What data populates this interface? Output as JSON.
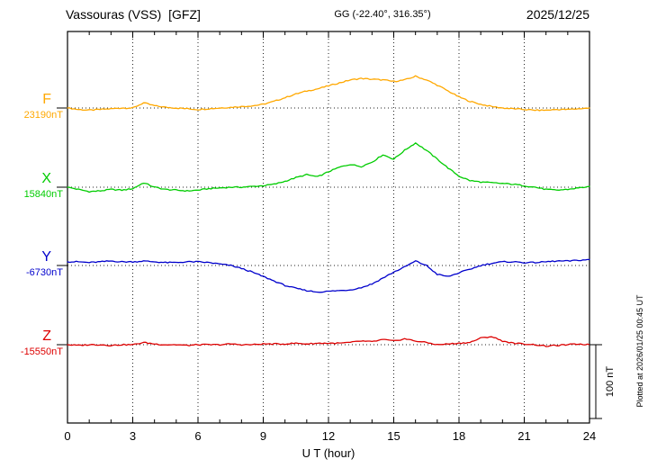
{
  "header": {
    "station": "Vassouras (VSS)  [GFZ]",
    "coords": "GG (-22.40°, 316.35°)",
    "date": "2025/12/25"
  },
  "footer": {
    "plotted_at": "Plotted at 2026/01/25 00:45 UT"
  },
  "chart_data": {
    "type": "line",
    "title": "Vassouras (VSS) [GFZ] magnetogram 2025/12/25",
    "xlabel": "U T (hour)",
    "xlim": [
      0,
      24
    ],
    "x_ticks": [
      0,
      3,
      6,
      9,
      12,
      15,
      18,
      21,
      24
    ],
    "grid": "dotted vertical at 3h intervals; dotted horizontal baseline per channel",
    "legend_position": "left channel labels",
    "values_unit": "nT offset from channel baseline",
    "scale_bar": {
      "label": "100 nT",
      "nT": 100
    },
    "x": [
      0,
      0.5,
      1,
      1.5,
      2,
      2.5,
      3,
      3.5,
      4,
      4.5,
      5,
      5.5,
      6,
      6.5,
      7,
      7.5,
      8,
      8.5,
      9,
      9.5,
      10,
      10.5,
      11,
      11.5,
      12,
      12.5,
      13,
      13.5,
      14,
      14.5,
      15,
      15.5,
      16,
      16.5,
      17,
      17.5,
      18,
      18.5,
      19,
      19.5,
      20,
      20.5,
      21,
      21.5,
      22,
      22.5,
      23,
      23.5,
      24
    ],
    "series": [
      {
        "name": "F",
        "baseline_label": "23190nT",
        "baseline_nT": 23190,
        "color": "#FFA800",
        "values": [
          0,
          -2,
          -3,
          -2,
          -1,
          0,
          0,
          7,
          3,
          1,
          0,
          -1,
          -2,
          -1,
          0,
          1,
          2,
          3,
          5,
          9,
          14,
          19,
          23,
          26,
          30,
          34,
          38,
          40,
          39,
          38,
          36,
          38,
          43,
          38,
          31,
          23,
          15,
          9,
          5,
          2,
          0,
          -1,
          -2,
          -3,
          -3,
          -2,
          -2,
          -1,
          0
        ]
      },
      {
        "name": "X",
        "baseline_label": "15840nT",
        "baseline_nT": 15840,
        "color": "#00CC00",
        "values": [
          0,
          -3,
          -6,
          -5,
          -3,
          -4,
          -2,
          6,
          0,
          -3,
          -4,
          -5,
          -4,
          -2,
          -1,
          0,
          0,
          1,
          2,
          4,
          8,
          13,
          17,
          14,
          21,
          27,
          31,
          28,
          34,
          44,
          38,
          50,
          60,
          50,
          38,
          26,
          15,
          9,
          7,
          6,
          5,
          4,
          2,
          0,
          -3,
          -4,
          -3,
          -1,
          1
        ]
      },
      {
        "name": "Y",
        "baseline_label": "-6730nT",
        "baseline_nT": -6730,
        "color": "#0000CC",
        "values": [
          5,
          5,
          4,
          5,
          6,
          5,
          5,
          6,
          5,
          4,
          4,
          5,
          5,
          4,
          2,
          0,
          -4,
          -9,
          -15,
          -21,
          -27,
          -31,
          -34,
          -36,
          -35,
          -34,
          -33,
          -30,
          -25,
          -17,
          -9,
          -2,
          6,
          0,
          -12,
          -15,
          -10,
          -5,
          0,
          3,
          5,
          5,
          4,
          4,
          5,
          6,
          6,
          7,
          8
        ]
      },
      {
        "name": "Z",
        "baseline_label": "-15550nT",
        "baseline_nT": -15550,
        "color": "#DD0000",
        "values": [
          0,
          -1,
          0,
          0,
          -1,
          0,
          0,
          3,
          1,
          0,
          0,
          -1,
          0,
          0,
          0,
          1,
          0,
          0,
          1,
          1,
          1,
          2,
          1,
          2,
          2,
          2,
          3,
          5,
          4,
          7,
          5,
          8,
          5,
          3,
          0,
          1,
          2,
          3,
          9,
          11,
          5,
          2,
          1,
          0,
          -2,
          -1,
          0,
          1,
          0
        ]
      }
    ]
  }
}
